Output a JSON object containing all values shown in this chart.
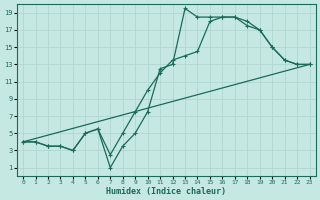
{
  "title": "",
  "xlabel": "Humidex (Indice chaleur)",
  "xlim": [
    -0.5,
    23.5
  ],
  "ylim": [
    0,
    20
  ],
  "xticks": [
    0,
    1,
    2,
    3,
    4,
    5,
    6,
    7,
    8,
    9,
    10,
    11,
    12,
    13,
    14,
    15,
    16,
    17,
    18,
    19,
    20,
    21,
    22,
    23
  ],
  "yticks": [
    1,
    3,
    5,
    7,
    9,
    11,
    13,
    15,
    17,
    19
  ],
  "bg_color": "#c5e8e2",
  "line_color": "#1a6b5a",
  "grid_color": "#b0d8d0",
  "lines": [
    {
      "x": [
        0,
        1,
        2,
        3,
        4,
        5,
        6,
        7,
        8,
        9,
        10,
        11,
        12,
        13,
        14,
        15,
        16,
        17,
        18,
        19,
        20,
        21,
        22,
        23
      ],
      "y": [
        4,
        4,
        3.5,
        3.5,
        3,
        5,
        5.5,
        1,
        3.5,
        5,
        7.5,
        12.5,
        13,
        19.5,
        18.5,
        18.5,
        18.5,
        18.5,
        17.5,
        17,
        15,
        13.5,
        13,
        13
      ]
    },
    {
      "x": [
        0,
        1,
        2,
        3,
        4,
        5,
        6,
        7,
        8,
        9,
        10,
        11,
        12,
        13,
        14,
        15,
        16,
        17,
        18,
        19,
        20,
        21,
        22,
        23
      ],
      "y": [
        4,
        4,
        3.5,
        3.5,
        3,
        5,
        5.5,
        2.5,
        5,
        7.5,
        10,
        12,
        13.5,
        14,
        14.5,
        18,
        18.5,
        18.5,
        18,
        17,
        15,
        13.5,
        13,
        13
      ]
    },
    {
      "x": [
        0,
        23
      ],
      "y": [
        4,
        13
      ]
    }
  ]
}
